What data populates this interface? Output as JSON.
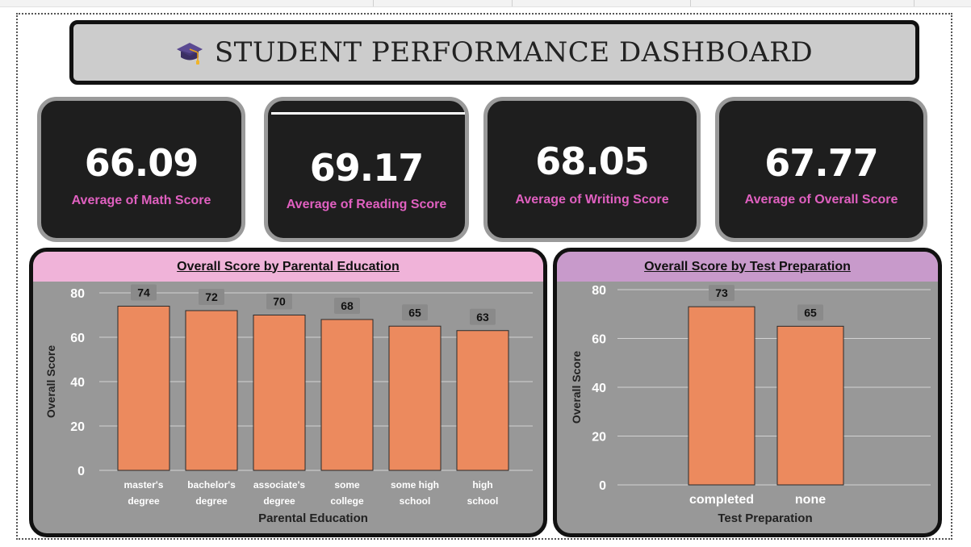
{
  "title": "STUDENT PERFORMANCE DASHBOARD",
  "title_icon": "graduation-cap-icon",
  "colors": {
    "bar_fill": "#ec8a5e",
    "kpi_background": "#1e1e1e",
    "kpi_label": "#e060c0",
    "panel_background": "#989898",
    "panel_header_left": "#f0b3d9",
    "panel_header_right": "#c89acb"
  },
  "kpis": [
    {
      "value": "66.09",
      "label": "Average of Math Score"
    },
    {
      "value": "69.17",
      "label": "Average of Reading Score"
    },
    {
      "value": "68.05",
      "label": "Average of Writing Score"
    },
    {
      "value": "67.77",
      "label": "Average of Overall Score"
    }
  ],
  "chart_data": [
    {
      "type": "bar",
      "title": "Overall Score by Parental Education",
      "xlabel": "Parental Education",
      "ylabel": "Overall Score",
      "categories": [
        "master's degree",
        "bachelor's degree",
        "associate's degree",
        "some college",
        "some high school",
        "high school"
      ],
      "values": [
        74,
        72,
        70,
        68,
        65,
        63
      ],
      "ylim": [
        0,
        80
      ],
      "yticks": [
        0,
        20,
        40,
        60,
        80
      ],
      "grid": true,
      "data_labels": true
    },
    {
      "type": "bar",
      "title": "Overall Score by Test Preparation",
      "xlabel": "Test Preparation",
      "ylabel": "Overall Score",
      "categories": [
        "completed",
        "none"
      ],
      "values": [
        73,
        65
      ],
      "ylim": [
        0,
        80
      ],
      "yticks": [
        0,
        20,
        40,
        60,
        80
      ],
      "grid": true,
      "data_labels": true
    }
  ]
}
